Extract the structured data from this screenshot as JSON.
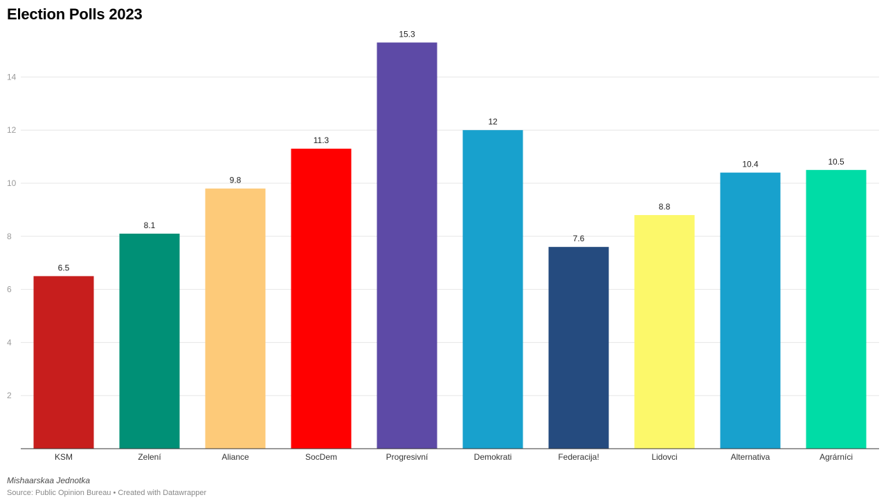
{
  "chart_data": {
    "type": "bar",
    "title": "Election Polls 2023",
    "xlabel": "",
    "ylabel": "",
    "categories": [
      "KSM",
      "Zelení",
      "Aliance",
      "SocDem",
      "Progresivní",
      "Demokrati",
      "Federacija!",
      "Lidovci",
      "Alternativa",
      "Agrárníci"
    ],
    "values": [
      6.5,
      8.1,
      9.8,
      11.3,
      15.3,
      12,
      7.6,
      8.8,
      10.4,
      10.5
    ],
    "value_labels": [
      "6.5",
      "8.1",
      "9.8",
      "11.3",
      "15.3",
      "12",
      "7.6",
      "8.8",
      "10.4",
      "10.5"
    ],
    "colors": [
      "#c71e1d",
      "#009076",
      "#fdca79",
      "#ff0000",
      "#5d4aa6",
      "#18a1cd",
      "#254b7f",
      "#fcf86a",
      "#18a1cd",
      "#00dca6"
    ],
    "yticks": [
      2,
      4,
      6,
      8,
      10,
      12,
      14
    ],
    "ylim": [
      0,
      15.3
    ],
    "grid": true,
    "legend": "none"
  },
  "footer": {
    "byline": "Mishaarskaa Jednotka",
    "source": "Source: Public Opinion Bureau • Created with Datawrapper"
  }
}
